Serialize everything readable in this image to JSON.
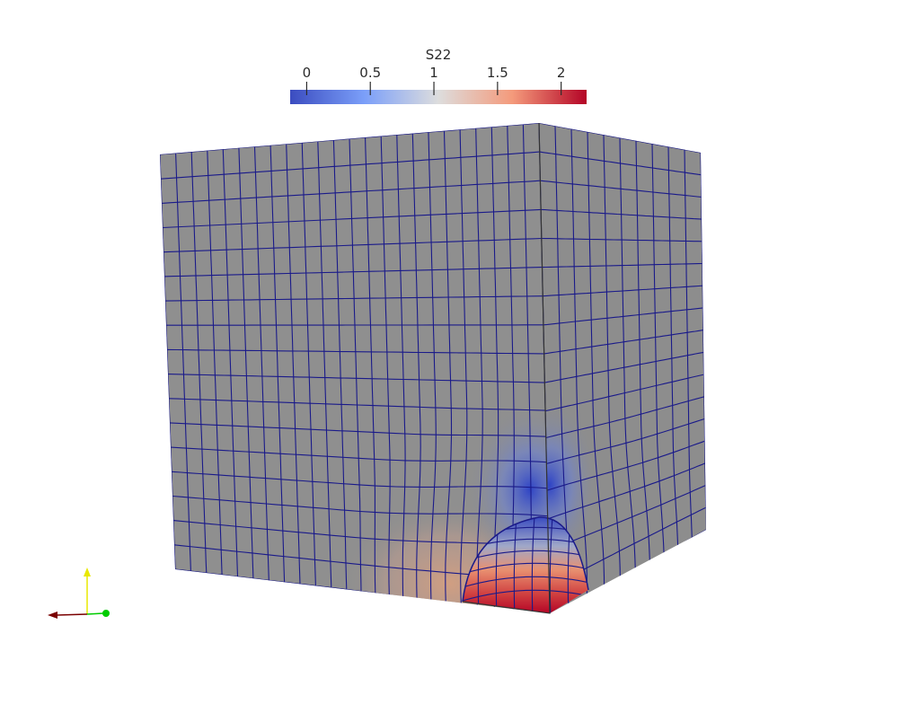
{
  "colorbar": {
    "title": "S22",
    "ticks": [
      {
        "value": 0,
        "label": "0"
      },
      {
        "value": 0.5,
        "label": "0.5"
      },
      {
        "value": 1,
        "label": "1"
      },
      {
        "value": 1.5,
        "label": "1.5"
      },
      {
        "value": 2,
        "label": "2"
      }
    ],
    "range": [
      -0.13,
      2.2
    ],
    "colors": {
      "low": "#3b4cc0",
      "mid": "#dddddd",
      "high": "#b40426"
    }
  },
  "mesh": {
    "surface_color": "#8f8f8f",
    "edge_color": "#1a1a8a",
    "outline_color": "#333333"
  },
  "orientation_axes": {
    "icons": [
      "y-axis-arrow-icon",
      "x-axis-arrow-icon",
      "z-axis-dot-icon"
    ],
    "colors": {
      "y": "#e8e800",
      "x": "#7a0000",
      "z": "#00cc00"
    }
  }
}
